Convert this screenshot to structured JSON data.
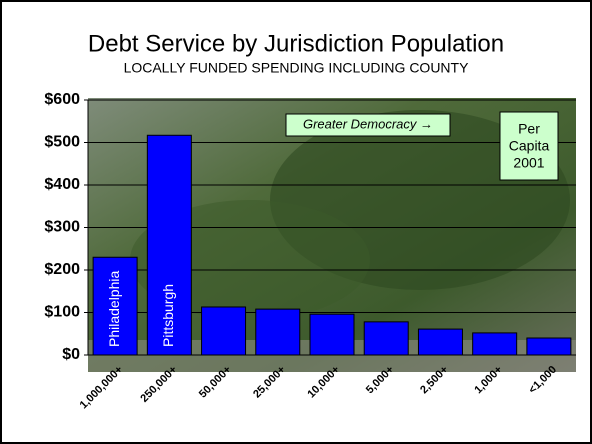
{
  "chart_data": {
    "type": "bar",
    "title": "Debt Service by Jurisdiction Population",
    "subtitle": "LOCALLY FUNDED SPENDING INCLUDING COUNTY",
    "categories": [
      "1,000,000+",
      "250,000+",
      "50,000+",
      "25,000+",
      "10,000+",
      "5,000+",
      "2,500+",
      "1,000+",
      "<1,000"
    ],
    "values": [
      230,
      517,
      113,
      108,
      96,
      78,
      61,
      52,
      40
    ],
    "bar_labels": [
      "Philadelphia",
      "Pittsburgh",
      null,
      null,
      null,
      null,
      null,
      null,
      null
    ],
    "color": "#0000ff",
    "ylim": [
      0,
      600
    ],
    "yticks": [
      {
        "value": 0,
        "label": "$0"
      },
      {
        "value": 100,
        "label": "$100"
      },
      {
        "value": 200,
        "label": "$200"
      },
      {
        "value": 300,
        "label": "$300"
      },
      {
        "value": 400,
        "label": "$400"
      },
      {
        "value": 500,
        "label": "$500"
      },
      {
        "value": 600,
        "label": "$600"
      }
    ],
    "grid": true,
    "annotations": [
      "Greater Democracy →"
    ],
    "note_lines": [
      "Per",
      "Capita",
      "2001"
    ]
  }
}
